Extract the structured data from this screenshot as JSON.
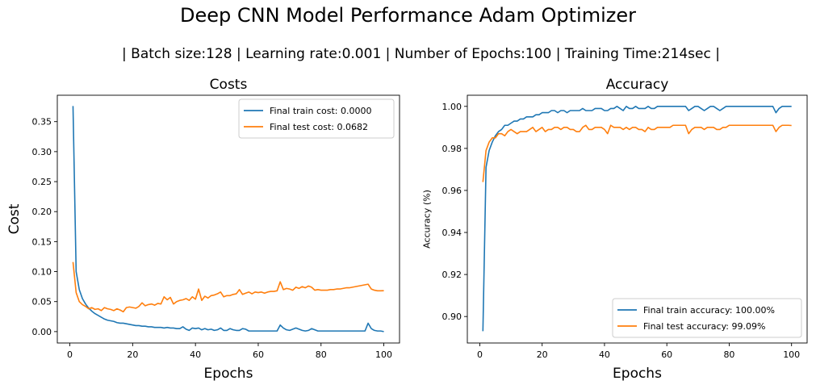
{
  "figure": {
    "title": "Deep CNN Model Performance Adam Optimizer",
    "subtitle": "| Batch size:128 | Learning rate:0.001 | Number of Epochs:100 | Training Time:214sec |"
  },
  "colors": {
    "train": "#1f77b4",
    "test": "#ff7f0e"
  },
  "chart_data": [
    {
      "type": "line",
      "title": "Costs",
      "xlabel": "Epochs",
      "ylabel": "Cost",
      "xlim": [
        -4,
        105
      ],
      "ylim": [
        -0.019,
        0.394
      ],
      "xticks": [
        0,
        20,
        40,
        60,
        80,
        100
      ],
      "yticks": [
        0.0,
        0.05,
        0.1,
        0.15,
        0.2,
        0.25,
        0.3,
        0.35
      ],
      "ytick_labels": [
        "0.00",
        "0.05",
        "0.10",
        "0.15",
        "0.20",
        "0.25",
        "0.30",
        "0.35"
      ],
      "grid": false,
      "legend_position": "top-right",
      "series": [
        {
          "name": "Final train cost: 0.0000",
          "color": "#1f77b4",
          "x": [
            1,
            2,
            3,
            4,
            5,
            6,
            7,
            8,
            9,
            10,
            11,
            12,
            13,
            14,
            15,
            16,
            17,
            18,
            19,
            20,
            21,
            22,
            23,
            24,
            25,
            26,
            27,
            28,
            29,
            30,
            31,
            32,
            33,
            34,
            35,
            36,
            37,
            38,
            39,
            40,
            41,
            42,
            43,
            44,
            45,
            46,
            47,
            48,
            49,
            50,
            51,
            52,
            53,
            54,
            55,
            56,
            57,
            58,
            59,
            60,
            61,
            62,
            63,
            64,
            65,
            66,
            67,
            68,
            69,
            70,
            71,
            72,
            73,
            74,
            75,
            76,
            77,
            78,
            79,
            80,
            81,
            82,
            83,
            84,
            85,
            86,
            87,
            88,
            89,
            90,
            91,
            92,
            93,
            94,
            95,
            96,
            97,
            98,
            99,
            100
          ],
          "y": [
            0.376,
            0.1,
            0.07,
            0.055,
            0.046,
            0.039,
            0.034,
            0.03,
            0.027,
            0.024,
            0.021,
            0.019,
            0.018,
            0.017,
            0.015,
            0.014,
            0.014,
            0.013,
            0.012,
            0.011,
            0.01,
            0.01,
            0.009,
            0.009,
            0.008,
            0.008,
            0.007,
            0.007,
            0.007,
            0.006,
            0.007,
            0.006,
            0.006,
            0.005,
            0.005,
            0.008,
            0.004,
            0.002,
            0.006,
            0.005,
            0.006,
            0.003,
            0.005,
            0.003,
            0.004,
            0.002,
            0.003,
            0.006,
            0.002,
            0.002,
            0.005,
            0.003,
            0.002,
            0.002,
            0.005,
            0.004,
            0.001,
            0.001,
            0.001,
            0.001,
            0.001,
            0.001,
            0.001,
            0.001,
            0.001,
            0.001,
            0.011,
            0.006,
            0.003,
            0.002,
            0.004,
            0.006,
            0.004,
            0.002,
            0.001,
            0.002,
            0.005,
            0.003,
            0.001,
            0.001,
            0.001,
            0.001,
            0.001,
            0.001,
            0.001,
            0.001,
            0.001,
            0.001,
            0.001,
            0.001,
            0.001,
            0.001,
            0.001,
            0.001,
            0.014,
            0.005,
            0.002,
            0.001,
            0.001,
            0.0
          ]
        },
        {
          "name": "Final test cost: 0.0682",
          "color": "#ff7f0e",
          "x": [
            1,
            2,
            3,
            4,
            5,
            6,
            7,
            8,
            9,
            10,
            11,
            12,
            13,
            14,
            15,
            16,
            17,
            18,
            19,
            20,
            21,
            22,
            23,
            24,
            25,
            26,
            27,
            28,
            29,
            30,
            31,
            32,
            33,
            34,
            35,
            36,
            37,
            38,
            39,
            40,
            41,
            42,
            43,
            44,
            45,
            46,
            47,
            48,
            49,
            50,
            51,
            52,
            53,
            54,
            55,
            56,
            57,
            58,
            59,
            60,
            61,
            62,
            63,
            64,
            65,
            66,
            67,
            68,
            69,
            70,
            71,
            72,
            73,
            74,
            75,
            76,
            77,
            78,
            79,
            80,
            81,
            82,
            83,
            84,
            85,
            86,
            87,
            88,
            89,
            90,
            91,
            92,
            93,
            94,
            95,
            96,
            97,
            98,
            99,
            100
          ],
          "y": [
            0.116,
            0.065,
            0.05,
            0.045,
            0.042,
            0.038,
            0.04,
            0.037,
            0.038,
            0.035,
            0.04,
            0.038,
            0.037,
            0.035,
            0.038,
            0.036,
            0.033,
            0.04,
            0.041,
            0.04,
            0.039,
            0.042,
            0.048,
            0.043,
            0.045,
            0.046,
            0.044,
            0.047,
            0.046,
            0.058,
            0.053,
            0.057,
            0.046,
            0.05,
            0.052,
            0.053,
            0.055,
            0.052,
            0.058,
            0.054,
            0.071,
            0.052,
            0.059,
            0.056,
            0.06,
            0.061,
            0.063,
            0.066,
            0.058,
            0.06,
            0.06,
            0.062,
            0.063,
            0.07,
            0.062,
            0.064,
            0.066,
            0.063,
            0.066,
            0.065,
            0.066,
            0.064,
            0.066,
            0.067,
            0.067,
            0.068,
            0.083,
            0.07,
            0.072,
            0.071,
            0.069,
            0.074,
            0.072,
            0.075,
            0.073,
            0.076,
            0.074,
            0.069,
            0.07,
            0.069,
            0.069,
            0.069,
            0.07,
            0.07,
            0.071,
            0.071,
            0.072,
            0.073,
            0.073,
            0.074,
            0.075,
            0.076,
            0.077,
            0.078,
            0.079,
            0.071,
            0.069,
            0.068,
            0.068,
            0.0682
          ]
        }
      ]
    },
    {
      "type": "line",
      "title": "Accuracy",
      "xlabel": "Epochs",
      "ylabel": "Accuracy (%)",
      "xlim": [
        -4,
        105
      ],
      "ylim": [
        0.8874,
        1.0053
      ],
      "xticks": [
        0,
        20,
        40,
        60,
        80,
        100
      ],
      "yticks": [
        0.9,
        0.92,
        0.94,
        0.96,
        0.98,
        1.0
      ],
      "ytick_labels": [
        "0.90",
        "0.92",
        "0.94",
        "0.96",
        "0.98",
        "1.00"
      ],
      "grid": false,
      "legend_position": "bottom-right",
      "series": [
        {
          "name": "Final train accuracy: 100.00%",
          "color": "#1f77b4",
          "x": [
            1,
            2,
            3,
            4,
            5,
            6,
            7,
            8,
            9,
            10,
            11,
            12,
            13,
            14,
            15,
            16,
            17,
            18,
            19,
            20,
            21,
            22,
            23,
            24,
            25,
            26,
            27,
            28,
            29,
            30,
            31,
            32,
            33,
            34,
            35,
            36,
            37,
            38,
            39,
            40,
            41,
            42,
            43,
            44,
            45,
            46,
            47,
            48,
            49,
            50,
            51,
            52,
            53,
            54,
            55,
            56,
            57,
            58,
            59,
            60,
            61,
            62,
            63,
            64,
            65,
            66,
            67,
            68,
            69,
            70,
            71,
            72,
            73,
            74,
            75,
            76,
            77,
            78,
            79,
            80,
            81,
            82,
            83,
            84,
            85,
            86,
            87,
            88,
            89,
            90,
            91,
            92,
            93,
            94,
            95,
            96,
            97,
            98,
            99,
            100
          ],
          "y": [
            0.893,
            0.971,
            0.979,
            0.983,
            0.986,
            0.988,
            0.989,
            0.991,
            0.991,
            0.992,
            0.993,
            0.993,
            0.994,
            0.994,
            0.995,
            0.995,
            0.995,
            0.996,
            0.996,
            0.997,
            0.997,
            0.997,
            0.998,
            0.998,
            0.997,
            0.998,
            0.998,
            0.997,
            0.998,
            0.998,
            0.998,
            0.998,
            0.999,
            0.998,
            0.998,
            0.998,
            0.999,
            0.999,
            0.999,
            0.998,
            0.998,
            0.999,
            0.999,
            1.0,
            0.999,
            0.998,
            1.0,
            0.999,
            0.999,
            1.0,
            0.999,
            0.999,
            0.999,
            1.0,
            0.999,
            0.999,
            1.0,
            1.0,
            1.0,
            1.0,
            1.0,
            1.0,
            1.0,
            1.0,
            1.0,
            1.0,
            0.998,
            0.999,
            1.0,
            1.0,
            0.999,
            0.998,
            0.999,
            1.0,
            1.0,
            0.999,
            0.998,
            0.999,
            1.0,
            1.0,
            1.0,
            1.0,
            1.0,
            1.0,
            1.0,
            1.0,
            1.0,
            1.0,
            1.0,
            1.0,
            1.0,
            1.0,
            1.0,
            1.0,
            0.997,
            0.999,
            1.0,
            1.0,
            1.0,
            1.0
          ]
        },
        {
          "name": "Final test accuracy: 99.09%",
          "color": "#ff7f0e",
          "x": [
            1,
            2,
            3,
            4,
            5,
            6,
            7,
            8,
            9,
            10,
            11,
            12,
            13,
            14,
            15,
            16,
            17,
            18,
            19,
            20,
            21,
            22,
            23,
            24,
            25,
            26,
            27,
            28,
            29,
            30,
            31,
            32,
            33,
            34,
            35,
            36,
            37,
            38,
            39,
            40,
            41,
            42,
            43,
            44,
            45,
            46,
            47,
            48,
            49,
            50,
            51,
            52,
            53,
            54,
            55,
            56,
            57,
            58,
            59,
            60,
            61,
            62,
            63,
            64,
            65,
            66,
            67,
            68,
            69,
            70,
            71,
            72,
            73,
            74,
            75,
            76,
            77,
            78,
            79,
            80,
            81,
            82,
            83,
            84,
            85,
            86,
            87,
            88,
            89,
            90,
            91,
            92,
            93,
            94,
            95,
            96,
            97,
            98,
            99,
            100
          ],
          "y": [
            0.964,
            0.979,
            0.983,
            0.985,
            0.985,
            0.987,
            0.987,
            0.986,
            0.988,
            0.989,
            0.988,
            0.987,
            0.988,
            0.988,
            0.988,
            0.989,
            0.99,
            0.988,
            0.989,
            0.99,
            0.988,
            0.989,
            0.989,
            0.99,
            0.99,
            0.989,
            0.99,
            0.99,
            0.989,
            0.989,
            0.988,
            0.988,
            0.99,
            0.991,
            0.989,
            0.989,
            0.99,
            0.99,
            0.99,
            0.989,
            0.987,
            0.991,
            0.99,
            0.99,
            0.99,
            0.989,
            0.99,
            0.989,
            0.99,
            0.99,
            0.989,
            0.989,
            0.988,
            0.99,
            0.989,
            0.989,
            0.99,
            0.99,
            0.99,
            0.99,
            0.99,
            0.991,
            0.991,
            0.991,
            0.991,
            0.991,
            0.987,
            0.989,
            0.99,
            0.99,
            0.99,
            0.989,
            0.99,
            0.99,
            0.99,
            0.989,
            0.989,
            0.99,
            0.99,
            0.991,
            0.991,
            0.991,
            0.991,
            0.991,
            0.991,
            0.991,
            0.991,
            0.991,
            0.991,
            0.991,
            0.991,
            0.991,
            0.991,
            0.991,
            0.988,
            0.99,
            0.991,
            0.991,
            0.991,
            0.9909
          ]
        }
      ]
    }
  ]
}
